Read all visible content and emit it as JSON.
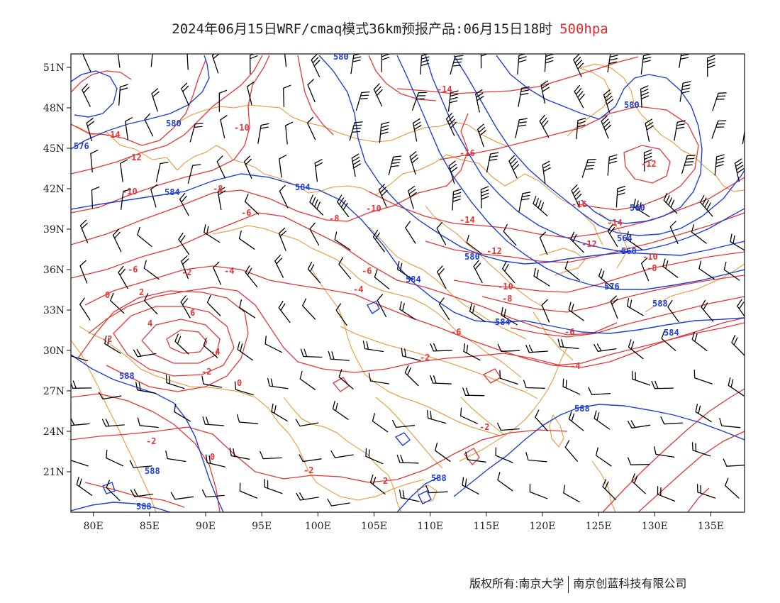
{
  "title": {
    "main": "2024年06月15日WRF/cmaq模式36km预报产品:06月15日18时",
    "level": "500hpa"
  },
  "map": {
    "lon_range": [
      78,
      138
    ],
    "lat_range": [
      18,
      52
    ],
    "lat_ticks": [
      "51N",
      "48N",
      "45N",
      "42N",
      "39N",
      "36N",
      "33N",
      "30N",
      "27N",
      "24N",
      "21N"
    ],
    "lon_ticks": [
      "80E",
      "85E",
      "90E",
      "95E",
      "100E",
      "105E",
      "110E",
      "115E",
      "120E",
      "125E",
      "130E",
      "135E"
    ],
    "colors": {
      "geopotential": "#1f3fd8",
      "temperature": "#e53535",
      "boundary": "#e8902a",
      "wind": "#000000"
    },
    "geopotential_labels": [
      "580",
      "580",
      "576",
      "584",
      "584",
      "580",
      "584",
      "584",
      "580",
      "560",
      "564",
      "568",
      "576",
      "588",
      "584",
      "588",
      "588",
      "588",
      "588",
      "588"
    ],
    "temperature_labels": [
      "-14",
      "-12",
      "-10",
      "-10",
      "-8",
      "-6",
      "-6",
      "-8",
      "-10",
      "-14",
      "-16",
      "-14",
      "-12",
      "-16",
      "-14",
      "-12",
      "-10",
      "-12",
      "-8",
      "-6",
      "-4",
      "-2",
      "0",
      "2",
      "4",
      "6",
      "-4",
      "-2",
      "0",
      "-4",
      "-6",
      "-8",
      "-10",
      "-6",
      "-4",
      "-2",
      "-2",
      "-2",
      "-2",
      "0",
      "-2",
      "2"
    ]
  },
  "footer": {
    "copyright": "版权所有:南京大学",
    "company": "南京创蓝科技有限公司"
  }
}
